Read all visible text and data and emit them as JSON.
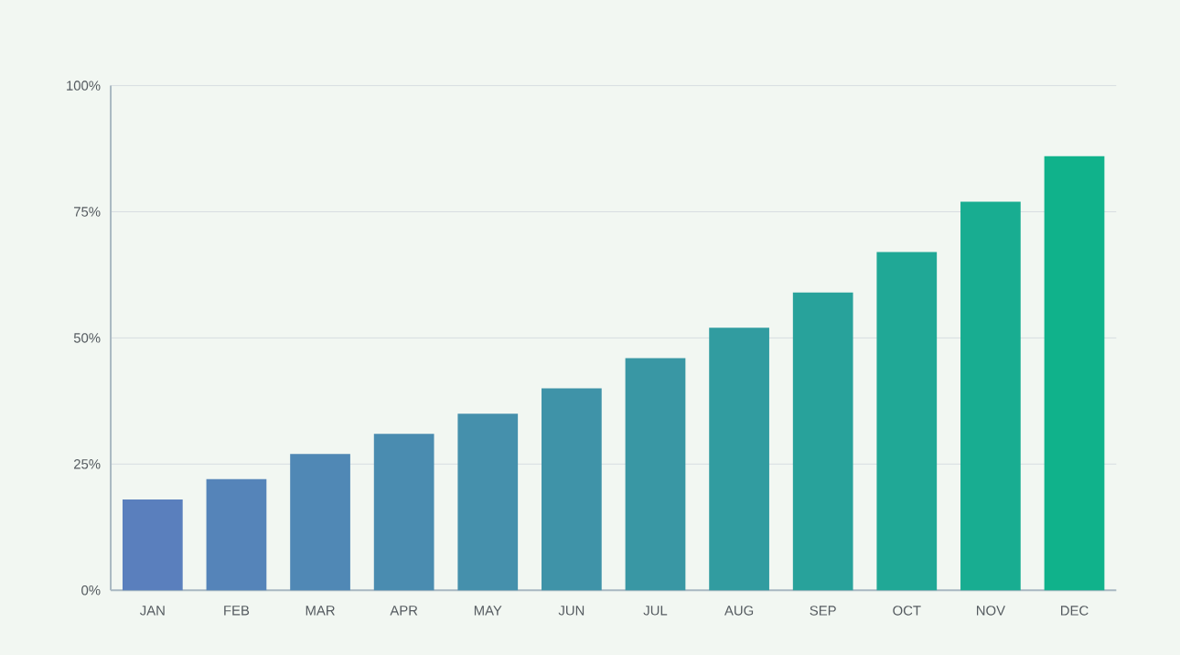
{
  "chart_data": {
    "type": "bar",
    "categories": [
      "JAN",
      "FEB",
      "MAR",
      "APR",
      "MAY",
      "JUN",
      "JUL",
      "AUG",
      "SEP",
      "OCT",
      "NOV",
      "DEC"
    ],
    "values": [
      18,
      22,
      27,
      31,
      35,
      40,
      46,
      52,
      59,
      67,
      77,
      86
    ],
    "colors": [
      "#5a7fbd",
      "#5584b9",
      "#5088b5",
      "#4a8cb0",
      "#4590ac",
      "#3f93a8",
      "#3997a4",
      "#319ca0",
      "#28a29b",
      "#20a896",
      "#18ad91",
      "#10b28b"
    ],
    "ylim": [
      0,
      100
    ],
    "yticks": [
      {
        "value": 0,
        "label": "0%"
      },
      {
        "value": 25,
        "label": "25%"
      },
      {
        "value": 50,
        "label": "50%"
      },
      {
        "value": 75,
        "label": "75%"
      },
      {
        "value": 100,
        "label": "100%"
      }
    ],
    "grid": "y"
  }
}
